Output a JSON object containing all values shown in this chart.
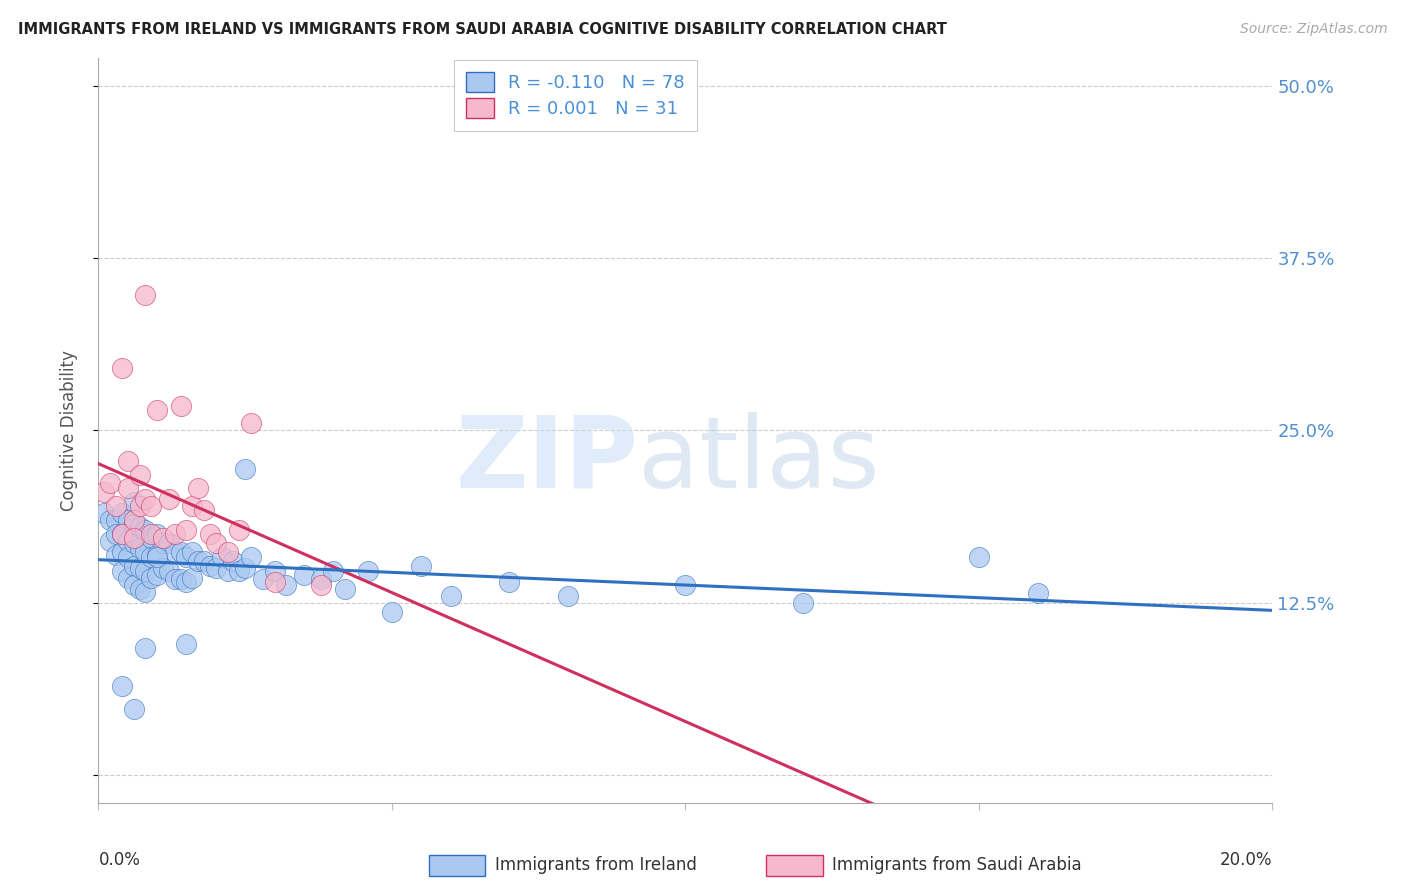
{
  "title": "IMMIGRANTS FROM IRELAND VS IMMIGRANTS FROM SAUDI ARABIA COGNITIVE DISABILITY CORRELATION CHART",
  "source": "Source: ZipAtlas.com",
  "ylabel": "Cognitive Disability",
  "legend_ireland": "Immigrants from Ireland",
  "legend_saudi": "Immigrants from Saudi Arabia",
  "R_ireland": -0.11,
  "N_ireland": 78,
  "R_saudi": 0.001,
  "N_saudi": 31,
  "xlim": [
    0.0,
    0.2
  ],
  "ylim": [
    -0.02,
    0.52
  ],
  "ytick_vals": [
    0.0,
    0.125,
    0.25,
    0.375,
    0.5
  ],
  "ytick_labels": [
    "",
    "12.5%",
    "25.0%",
    "37.5%",
    "50.0%"
  ],
  "color_ireland": "#aac8f0",
  "color_saudi": "#f5b8cc",
  "line_ireland": "#3070c0",
  "line_saudi": "#d03060",
  "ireland_x": [
    0.001,
    0.002,
    0.002,
    0.003,
    0.003,
    0.003,
    0.004,
    0.004,
    0.004,
    0.004,
    0.005,
    0.005,
    0.005,
    0.005,
    0.006,
    0.006,
    0.006,
    0.006,
    0.006,
    0.007,
    0.007,
    0.007,
    0.007,
    0.008,
    0.008,
    0.008,
    0.008,
    0.009,
    0.009,
    0.009,
    0.01,
    0.01,
    0.01,
    0.011,
    0.011,
    0.012,
    0.012,
    0.013,
    0.013,
    0.014,
    0.014,
    0.015,
    0.015,
    0.016,
    0.016,
    0.017,
    0.018,
    0.019,
    0.02,
    0.021,
    0.022,
    0.023,
    0.024,
    0.025,
    0.026,
    0.028,
    0.03,
    0.032,
    0.035,
    0.038,
    0.04,
    0.042,
    0.046,
    0.05,
    0.055,
    0.06,
    0.07,
    0.08,
    0.1,
    0.12,
    0.15,
    0.16,
    0.004,
    0.006,
    0.008,
    0.01,
    0.015,
    0.025
  ],
  "ireland_y": [
    0.19,
    0.185,
    0.17,
    0.185,
    0.175,
    0.16,
    0.19,
    0.175,
    0.162,
    0.148,
    0.185,
    0.17,
    0.158,
    0.143,
    0.198,
    0.182,
    0.168,
    0.152,
    0.138,
    0.18,
    0.165,
    0.15,
    0.135,
    0.178,
    0.162,
    0.148,
    0.133,
    0.172,
    0.158,
    0.143,
    0.175,
    0.16,
    0.145,
    0.168,
    0.15,
    0.168,
    0.148,
    0.162,
    0.142,
    0.162,
    0.142,
    0.158,
    0.14,
    0.162,
    0.143,
    0.155,
    0.155,
    0.152,
    0.15,
    0.158,
    0.148,
    0.155,
    0.148,
    0.15,
    0.158,
    0.142,
    0.148,
    0.138,
    0.145,
    0.142,
    0.148,
    0.135,
    0.148,
    0.118,
    0.152,
    0.13,
    0.14,
    0.13,
    0.138,
    0.125,
    0.158,
    0.132,
    0.065,
    0.048,
    0.092,
    0.158,
    0.095,
    0.222
  ],
  "saudi_x": [
    0.001,
    0.002,
    0.003,
    0.004,
    0.004,
    0.005,
    0.005,
    0.006,
    0.006,
    0.007,
    0.007,
    0.008,
    0.008,
    0.009,
    0.009,
    0.01,
    0.011,
    0.012,
    0.013,
    0.014,
    0.015,
    0.016,
    0.017,
    0.018,
    0.019,
    0.02,
    0.022,
    0.024,
    0.026,
    0.03,
    0.038
  ],
  "saudi_y": [
    0.205,
    0.212,
    0.195,
    0.175,
    0.295,
    0.228,
    0.208,
    0.185,
    0.172,
    0.195,
    0.218,
    0.348,
    0.2,
    0.195,
    0.175,
    0.265,
    0.172,
    0.2,
    0.175,
    0.268,
    0.178,
    0.195,
    0.208,
    0.192,
    0.175,
    0.168,
    0.162,
    0.178,
    0.255,
    0.14,
    0.138
  ]
}
